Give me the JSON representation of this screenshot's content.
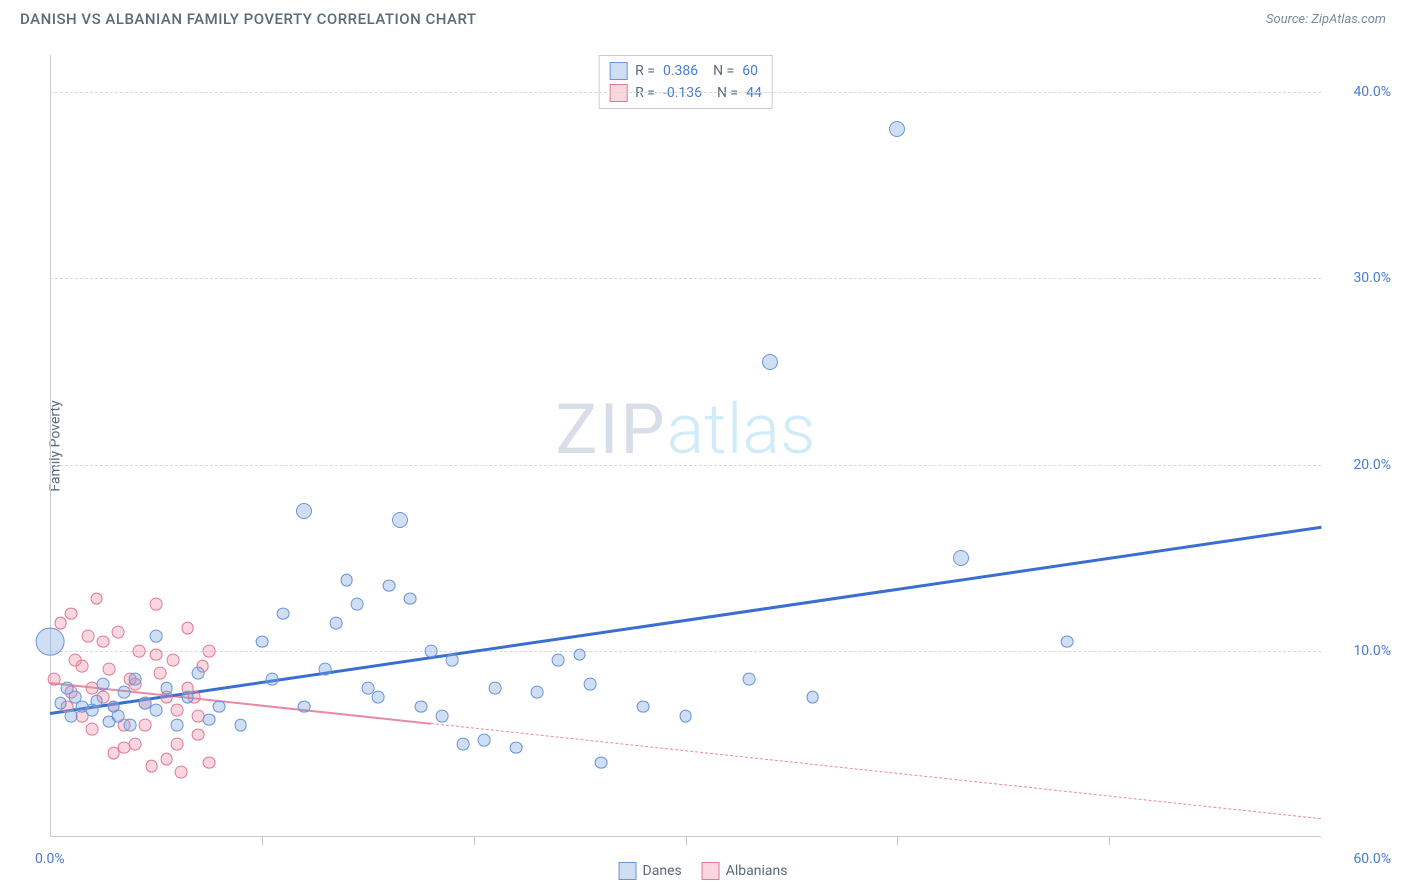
{
  "header": {
    "title": "DANISH VS ALBANIAN FAMILY POVERTY CORRELATION CHART",
    "source": "Source: ZipAtlas.com"
  },
  "watermark": {
    "part1": "ZIP",
    "part2": "atlas"
  },
  "yaxis_label": "Family Poverty",
  "chart": {
    "type": "scatter",
    "xlim": [
      0,
      60
    ],
    "ylim": [
      0,
      42
    ],
    "x_tick_step": 10,
    "y_tick_step": 10,
    "x_min_label": "0.0%",
    "x_max_label": "60.0%",
    "y_tick_labels": [
      "10.0%",
      "20.0%",
      "30.0%",
      "40.0%"
    ],
    "background_color": "#ffffff",
    "grid_color": "#d5d9de",
    "axis_color": "#c8cdd3",
    "label_color": "#4a7bd0",
    "series": {
      "danes": {
        "label": "Danes",
        "fill": "rgba(120,160,220,0.35)",
        "stroke": "#6a95d8",
        "r_color": "0.386",
        "n_color": "60",
        "trend": {
          "color": "#3a6fd0",
          "width": 3,
          "x1": 0,
          "y1": 6.7,
          "x2": 60,
          "y2": 16.7,
          "solid_to_x": 60
        },
        "points": [
          [
            0,
            10.5,
            18
          ],
          [
            0.5,
            7.2,
            8
          ],
          [
            0.8,
            8.0,
            8
          ],
          [
            1.0,
            6.5,
            8
          ],
          [
            1.2,
            7.5,
            8
          ],
          [
            1.5,
            7.0,
            8
          ],
          [
            2.0,
            6.8,
            8
          ],
          [
            2.2,
            7.3,
            8
          ],
          [
            2.5,
            8.2,
            8
          ],
          [
            2.8,
            6.2,
            8
          ],
          [
            3.0,
            7.0,
            8
          ],
          [
            3.2,
            6.5,
            8
          ],
          [
            3.5,
            7.8,
            8
          ],
          [
            3.8,
            6.0,
            8
          ],
          [
            4.0,
            8.5,
            8
          ],
          [
            4.5,
            7.2,
            8
          ],
          [
            5.0,
            6.8,
            8
          ],
          [
            5.0,
            10.8,
            8
          ],
          [
            5.5,
            8.0,
            8
          ],
          [
            6.0,
            6.0,
            8
          ],
          [
            6.5,
            7.5,
            8
          ],
          [
            7.0,
            8.8,
            8
          ],
          [
            7.5,
            6.3,
            8
          ],
          [
            8.0,
            7.0,
            8
          ],
          [
            9.0,
            6.0,
            8
          ],
          [
            10.0,
            10.5,
            8
          ],
          [
            10.5,
            8.5,
            8
          ],
          [
            11.0,
            12.0,
            8
          ],
          [
            12.0,
            7.0,
            8
          ],
          [
            12.0,
            17.5,
            10
          ],
          [
            13.0,
            9.0,
            8
          ],
          [
            13.5,
            11.5,
            8
          ],
          [
            14.0,
            13.8,
            8
          ],
          [
            14.5,
            12.5,
            8
          ],
          [
            15.0,
            8.0,
            8
          ],
          [
            15.5,
            7.5,
            8
          ],
          [
            16.0,
            13.5,
            8
          ],
          [
            16.5,
            17.0,
            10
          ],
          [
            17.0,
            12.8,
            8
          ],
          [
            17.5,
            7.0,
            8
          ],
          [
            18.0,
            10.0,
            8
          ],
          [
            18.5,
            6.5,
            8
          ],
          [
            19.0,
            9.5,
            8
          ],
          [
            19.5,
            5.0,
            8
          ],
          [
            20.5,
            5.2,
            8
          ],
          [
            21.0,
            8.0,
            8
          ],
          [
            22.0,
            4.8,
            8
          ],
          [
            23.0,
            7.8,
            8
          ],
          [
            24.0,
            9.5,
            8
          ],
          [
            25.0,
            9.8,
            8
          ],
          [
            25.5,
            8.2,
            8
          ],
          [
            26.0,
            4.0,
            8
          ],
          [
            28.0,
            7.0,
            8
          ],
          [
            30.0,
            6.5,
            8
          ],
          [
            33.0,
            8.5,
            8
          ],
          [
            34.0,
            25.5,
            10
          ],
          [
            40.0,
            38.0,
            10
          ],
          [
            43.0,
            15.0,
            10
          ],
          [
            48.0,
            10.5,
            8
          ],
          [
            36.0,
            7.5,
            8
          ]
        ]
      },
      "albanians": {
        "label": "Albanians",
        "fill": "rgba(240,140,160,0.35)",
        "stroke": "#e07a95",
        "r_color": "-0.136",
        "n_color": "44",
        "trend": {
          "color": "#e88aa0",
          "width": 2,
          "x1": 0,
          "y1": 8.3,
          "x2": 60,
          "y2": 1.0,
          "solid_to_x": 18
        },
        "points": [
          [
            0.2,
            8.5,
            8
          ],
          [
            0.5,
            11.5,
            8
          ],
          [
            0.8,
            7.0,
            8
          ],
          [
            1.0,
            12.0,
            8
          ],
          [
            1.2,
            9.5,
            8
          ],
          [
            1.5,
            6.5,
            8
          ],
          [
            1.8,
            10.8,
            8
          ],
          [
            2.0,
            8.0,
            8
          ],
          [
            2.2,
            12.8,
            8
          ],
          [
            2.5,
            7.5,
            8
          ],
          [
            2.8,
            9.0,
            8
          ],
          [
            3.0,
            4.5,
            8
          ],
          [
            3.2,
            11.0,
            8
          ],
          [
            3.5,
            6.0,
            8
          ],
          [
            3.8,
            8.5,
            8
          ],
          [
            4.0,
            5.0,
            8
          ],
          [
            4.2,
            10.0,
            8
          ],
          [
            4.5,
            7.2,
            8
          ],
          [
            4.8,
            3.8,
            8
          ],
          [
            5.0,
            12.5,
            8
          ],
          [
            5.2,
            8.8,
            8
          ],
          [
            5.5,
            4.2,
            8
          ],
          [
            5.8,
            9.5,
            8
          ],
          [
            6.0,
            6.8,
            8
          ],
          [
            6.2,
            3.5,
            8
          ],
          [
            6.5,
            11.2,
            8
          ],
          [
            6.8,
            7.5,
            8
          ],
          [
            7.0,
            5.5,
            8
          ],
          [
            7.2,
            9.2,
            8
          ],
          [
            7.5,
            4.0,
            8
          ],
          [
            1.0,
            7.8,
            8
          ],
          [
            1.5,
            9.2,
            8
          ],
          [
            2.0,
            5.8,
            8
          ],
          [
            2.5,
            10.5,
            8
          ],
          [
            3.0,
            7.0,
            8
          ],
          [
            3.5,
            4.8,
            8
          ],
          [
            4.0,
            8.2,
            8
          ],
          [
            4.5,
            6.0,
            8
          ],
          [
            5.0,
            9.8,
            8
          ],
          [
            5.5,
            7.5,
            8
          ],
          [
            6.0,
            5.0,
            8
          ],
          [
            6.5,
            8.0,
            8
          ],
          [
            7.0,
            6.5,
            8
          ],
          [
            7.5,
            10.0,
            8
          ]
        ]
      }
    }
  },
  "legend_bottom": [
    {
      "label": "Danes",
      "key": "danes"
    },
    {
      "label": "Albanians",
      "key": "albanians"
    }
  ]
}
